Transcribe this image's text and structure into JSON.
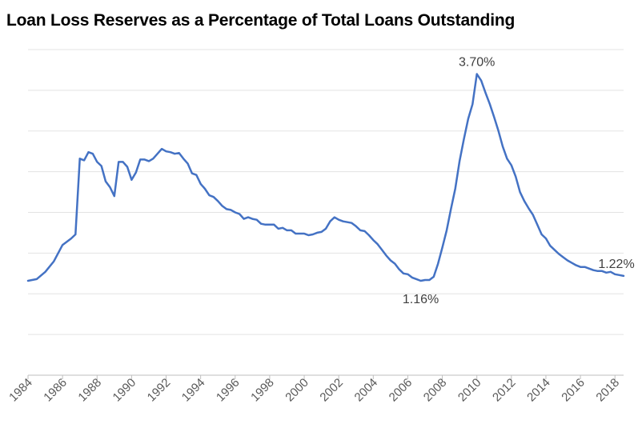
{
  "chart_data": {
    "type": "line",
    "title": "Loan Loss Reserves as a Percentage of Total Loans Outstanding",
    "xlabel": "",
    "ylabel": "",
    "xlim": [
      1984,
      2018.5
    ],
    "ylim": [
      0,
      4
    ],
    "gridlines": "horizontal",
    "y_tick_labels_shown": false,
    "x_ticks": [
      "1984",
      "1986",
      "1988",
      "1990",
      "1992",
      "1994",
      "1996",
      "1998",
      "2000",
      "2002",
      "2004",
      "2006",
      "2008",
      "2010",
      "2012",
      "2014",
      "2016",
      "2018"
    ],
    "line_color": "#4472C4",
    "series": [
      {
        "values": [
          [
            1984.0,
            1.16
          ],
          [
            1984.5,
            1.18
          ],
          [
            1985.0,
            1.27
          ],
          [
            1985.5,
            1.4
          ],
          [
            1986.0,
            1.6
          ],
          [
            1986.5,
            1.68
          ],
          [
            1986.75,
            1.73
          ],
          [
            1987.0,
            2.66
          ],
          [
            1987.25,
            2.64
          ],
          [
            1987.5,
            2.74
          ],
          [
            1987.75,
            2.72
          ],
          [
            1988.0,
            2.62
          ],
          [
            1988.25,
            2.57
          ],
          [
            1988.5,
            2.38
          ],
          [
            1988.75,
            2.31
          ],
          [
            1989.0,
            2.2
          ],
          [
            1989.25,
            2.62
          ],
          [
            1989.5,
            2.62
          ],
          [
            1989.75,
            2.56
          ],
          [
            1990.0,
            2.4
          ],
          [
            1990.25,
            2.49
          ],
          [
            1990.5,
            2.65
          ],
          [
            1990.75,
            2.65
          ],
          [
            1991.0,
            2.63
          ],
          [
            1991.25,
            2.66
          ],
          [
            1991.5,
            2.72
          ],
          [
            1991.75,
            2.78
          ],
          [
            1992.0,
            2.75
          ],
          [
            1992.25,
            2.74
          ],
          [
            1992.5,
            2.72
          ],
          [
            1992.75,
            2.73
          ],
          [
            1993.0,
            2.66
          ],
          [
            1993.25,
            2.6
          ],
          [
            1993.5,
            2.48
          ],
          [
            1993.75,
            2.46
          ],
          [
            1994.0,
            2.35
          ],
          [
            1994.25,
            2.29
          ],
          [
            1994.5,
            2.21
          ],
          [
            1994.75,
            2.19
          ],
          [
            1995.0,
            2.14
          ],
          [
            1995.25,
            2.08
          ],
          [
            1995.5,
            2.04
          ],
          [
            1995.75,
            2.03
          ],
          [
            1996.0,
            2.0
          ],
          [
            1996.25,
            1.98
          ],
          [
            1996.5,
            1.92
          ],
          [
            1996.75,
            1.94
          ],
          [
            1997.0,
            1.92
          ],
          [
            1997.25,
            1.91
          ],
          [
            1997.5,
            1.86
          ],
          [
            1997.75,
            1.85
          ],
          [
            1998.0,
            1.85
          ],
          [
            1998.25,
            1.85
          ],
          [
            1998.5,
            1.8
          ],
          [
            1998.75,
            1.81
          ],
          [
            1999.0,
            1.78
          ],
          [
            1999.25,
            1.78
          ],
          [
            1999.5,
            1.74
          ],
          [
            1999.75,
            1.74
          ],
          [
            2000.0,
            1.74
          ],
          [
            2000.25,
            1.72
          ],
          [
            2000.5,
            1.73
          ],
          [
            2000.75,
            1.75
          ],
          [
            2001.0,
            1.76
          ],
          [
            2001.25,
            1.8
          ],
          [
            2001.5,
            1.89
          ],
          [
            2001.75,
            1.94
          ],
          [
            2002.0,
            1.91
          ],
          [
            2002.25,
            1.89
          ],
          [
            2002.5,
            1.88
          ],
          [
            2002.75,
            1.87
          ],
          [
            2003.0,
            1.83
          ],
          [
            2003.25,
            1.78
          ],
          [
            2003.5,
            1.77
          ],
          [
            2003.75,
            1.72
          ],
          [
            2004.0,
            1.66
          ],
          [
            2004.25,
            1.61
          ],
          [
            2004.5,
            1.54
          ],
          [
            2004.75,
            1.47
          ],
          [
            2005.0,
            1.41
          ],
          [
            2005.25,
            1.37
          ],
          [
            2005.5,
            1.3
          ],
          [
            2005.75,
            1.25
          ],
          [
            2006.0,
            1.24
          ],
          [
            2006.25,
            1.2
          ],
          [
            2006.5,
            1.18
          ],
          [
            2006.75,
            1.16
          ],
          [
            2007.0,
            1.17
          ],
          [
            2007.25,
            1.17
          ],
          [
            2007.5,
            1.21
          ],
          [
            2007.75,
            1.37
          ],
          [
            2008.0,
            1.57
          ],
          [
            2008.25,
            1.78
          ],
          [
            2008.5,
            2.04
          ],
          [
            2008.75,
            2.29
          ],
          [
            2009.0,
            2.63
          ],
          [
            2009.25,
            2.9
          ],
          [
            2009.5,
            3.15
          ],
          [
            2009.75,
            3.33
          ],
          [
            2010.0,
            3.7
          ],
          [
            2010.25,
            3.62
          ],
          [
            2010.5,
            3.47
          ],
          [
            2010.75,
            3.33
          ],
          [
            2011.0,
            3.17
          ],
          [
            2011.25,
            3.0
          ],
          [
            2011.5,
            2.81
          ],
          [
            2011.75,
            2.66
          ],
          [
            2012.0,
            2.58
          ],
          [
            2012.25,
            2.44
          ],
          [
            2012.5,
            2.25
          ],
          [
            2012.75,
            2.14
          ],
          [
            2013.0,
            2.05
          ],
          [
            2013.25,
            1.97
          ],
          [
            2013.5,
            1.85
          ],
          [
            2013.75,
            1.73
          ],
          [
            2014.0,
            1.68
          ],
          [
            2014.25,
            1.59
          ],
          [
            2014.5,
            1.54
          ],
          [
            2014.75,
            1.49
          ],
          [
            2015.0,
            1.45
          ],
          [
            2015.25,
            1.41
          ],
          [
            2015.5,
            1.38
          ],
          [
            2015.75,
            1.35
          ],
          [
            2016.0,
            1.33
          ],
          [
            2016.25,
            1.33
          ],
          [
            2016.5,
            1.31
          ],
          [
            2016.75,
            1.29
          ],
          [
            2017.0,
            1.28
          ],
          [
            2017.25,
            1.28
          ],
          [
            2017.5,
            1.26
          ],
          [
            2017.75,
            1.27
          ],
          [
            2018.0,
            1.24
          ],
          [
            2018.25,
            1.23
          ],
          [
            2018.5,
            1.22
          ]
        ]
      }
    ],
    "annotations": [
      {
        "text": "3.70%",
        "x": 2010.0,
        "y": 3.7,
        "position": "above"
      },
      {
        "text": "1.16%",
        "x": 2006.75,
        "y": 1.16,
        "position": "below"
      },
      {
        "text": "1.22%",
        "x": 2018.5,
        "y": 1.22,
        "position": "above"
      }
    ]
  }
}
